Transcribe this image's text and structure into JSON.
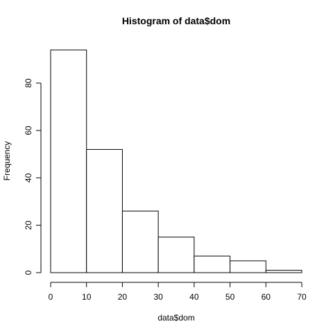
{
  "chart_data": {
    "type": "bar",
    "title": "Histogram of data$dom",
    "xlabel": "data$dom",
    "ylabel": "Frequency",
    "bin_edges": [
      0,
      10,
      20,
      30,
      40,
      50,
      60,
      70
    ],
    "values": [
      94,
      52,
      26,
      15,
      7,
      5,
      1
    ],
    "xlim": [
      0,
      70
    ],
    "ylim": [
      0,
      94
    ],
    "xticks": [
      0,
      10,
      20,
      30,
      40,
      50,
      60,
      70
    ],
    "yticks": [
      0,
      20,
      40,
      60,
      80
    ],
    "grid": false
  }
}
